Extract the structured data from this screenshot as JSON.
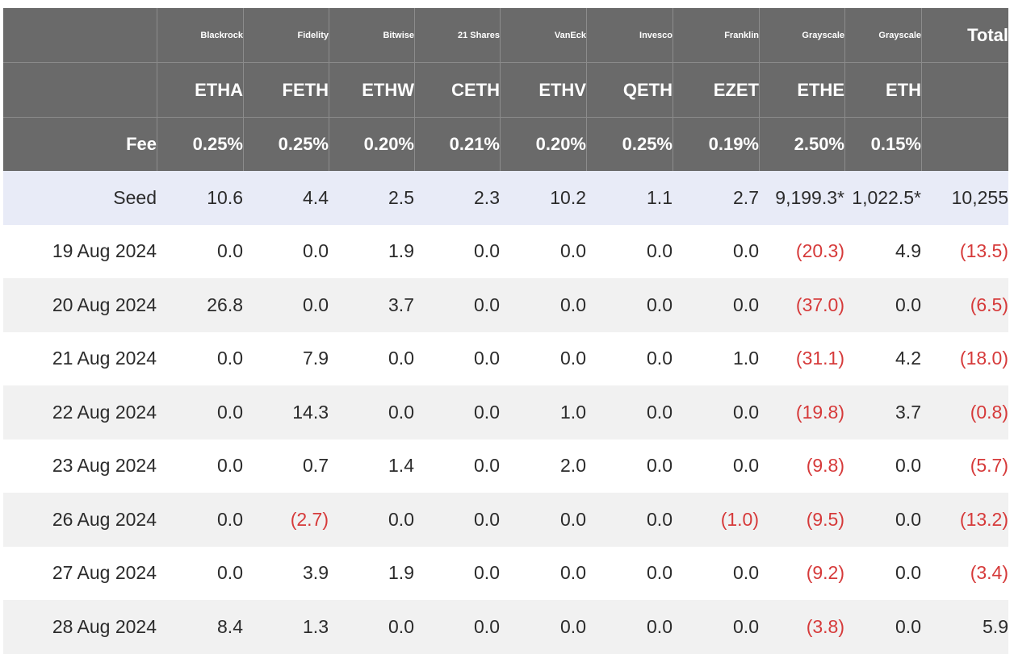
{
  "chart_data": {
    "type": "table",
    "columns": [
      {
        "issuer": "Blackrock",
        "ticker": "ETHA",
        "fee": "0.25%"
      },
      {
        "issuer": "Fidelity",
        "ticker": "FETH",
        "fee": "0.25%"
      },
      {
        "issuer": "Bitwise",
        "ticker": "ETHW",
        "fee": "0.20%"
      },
      {
        "issuer": "21 Shares",
        "ticker": "CETH",
        "fee": "0.21%"
      },
      {
        "issuer": "VanEck",
        "ticker": "ETHV",
        "fee": "0.20%"
      },
      {
        "issuer": "Invesco",
        "ticker": "QETH",
        "fee": "0.25%"
      },
      {
        "issuer": "Franklin",
        "ticker": "EZET",
        "fee": "0.19%"
      },
      {
        "issuer": "Grayscale",
        "ticker": "ETHE",
        "fee": "2.50%"
      },
      {
        "issuer": "Grayscale",
        "ticker": "ETH",
        "fee": "0.15%"
      }
    ],
    "total_label": "Total",
    "fee_label": "Fee",
    "rows": [
      {
        "label": "Seed",
        "values": [
          "10.6",
          "4.4",
          "2.5",
          "2.3",
          "10.2",
          "1.1",
          "2.7",
          "9,199.3*",
          "1,022.5*"
        ],
        "total": "10,255"
      },
      {
        "label": "19 Aug 2024",
        "values": [
          "0.0",
          "0.0",
          "1.9",
          "0.0",
          "0.0",
          "0.0",
          "0.0",
          "(20.3)",
          "4.9"
        ],
        "total": "(13.5)"
      },
      {
        "label": "20 Aug 2024",
        "values": [
          "26.8",
          "0.0",
          "3.7",
          "0.0",
          "0.0",
          "0.0",
          "0.0",
          "(37.0)",
          "0.0"
        ],
        "total": "(6.5)"
      },
      {
        "label": "21 Aug 2024",
        "values": [
          "0.0",
          "7.9",
          "0.0",
          "0.0",
          "0.0",
          "0.0",
          "1.0",
          "(31.1)",
          "4.2"
        ],
        "total": "(18.0)"
      },
      {
        "label": "22 Aug 2024",
        "values": [
          "0.0",
          "14.3",
          "0.0",
          "0.0",
          "1.0",
          "0.0",
          "0.0",
          "(19.8)",
          "3.7"
        ],
        "total": "(0.8)"
      },
      {
        "label": "23 Aug 2024",
        "values": [
          "0.0",
          "0.7",
          "1.4",
          "0.0",
          "2.0",
          "0.0",
          "0.0",
          "(9.8)",
          "0.0"
        ],
        "total": "(5.7)"
      },
      {
        "label": "26 Aug 2024",
        "values": [
          "0.0",
          "(2.7)",
          "0.0",
          "0.0",
          "0.0",
          "0.0",
          "(1.0)",
          "(9.5)",
          "0.0"
        ],
        "total": "(13.2)"
      },
      {
        "label": "27 Aug 2024",
        "values": [
          "0.0",
          "3.9",
          "1.9",
          "0.0",
          "0.0",
          "0.0",
          "0.0",
          "(9.2)",
          "0.0"
        ],
        "total": "(3.4)"
      },
      {
        "label": "28 Aug 2024",
        "values": [
          "8.4",
          "1.3",
          "0.0",
          "0.0",
          "0.0",
          "0.0",
          "0.0",
          "(3.8)",
          "0.0"
        ],
        "total": "5.9"
      }
    ],
    "colors": {
      "header_bg": "#6a6a6a",
      "header_text": "#ffffff",
      "seed_row_bg": "#e8ebf7",
      "alt_row_bg": "#f1f1f1",
      "negative_text": "#d63a3a",
      "body_text": "#2b2b2b"
    }
  }
}
